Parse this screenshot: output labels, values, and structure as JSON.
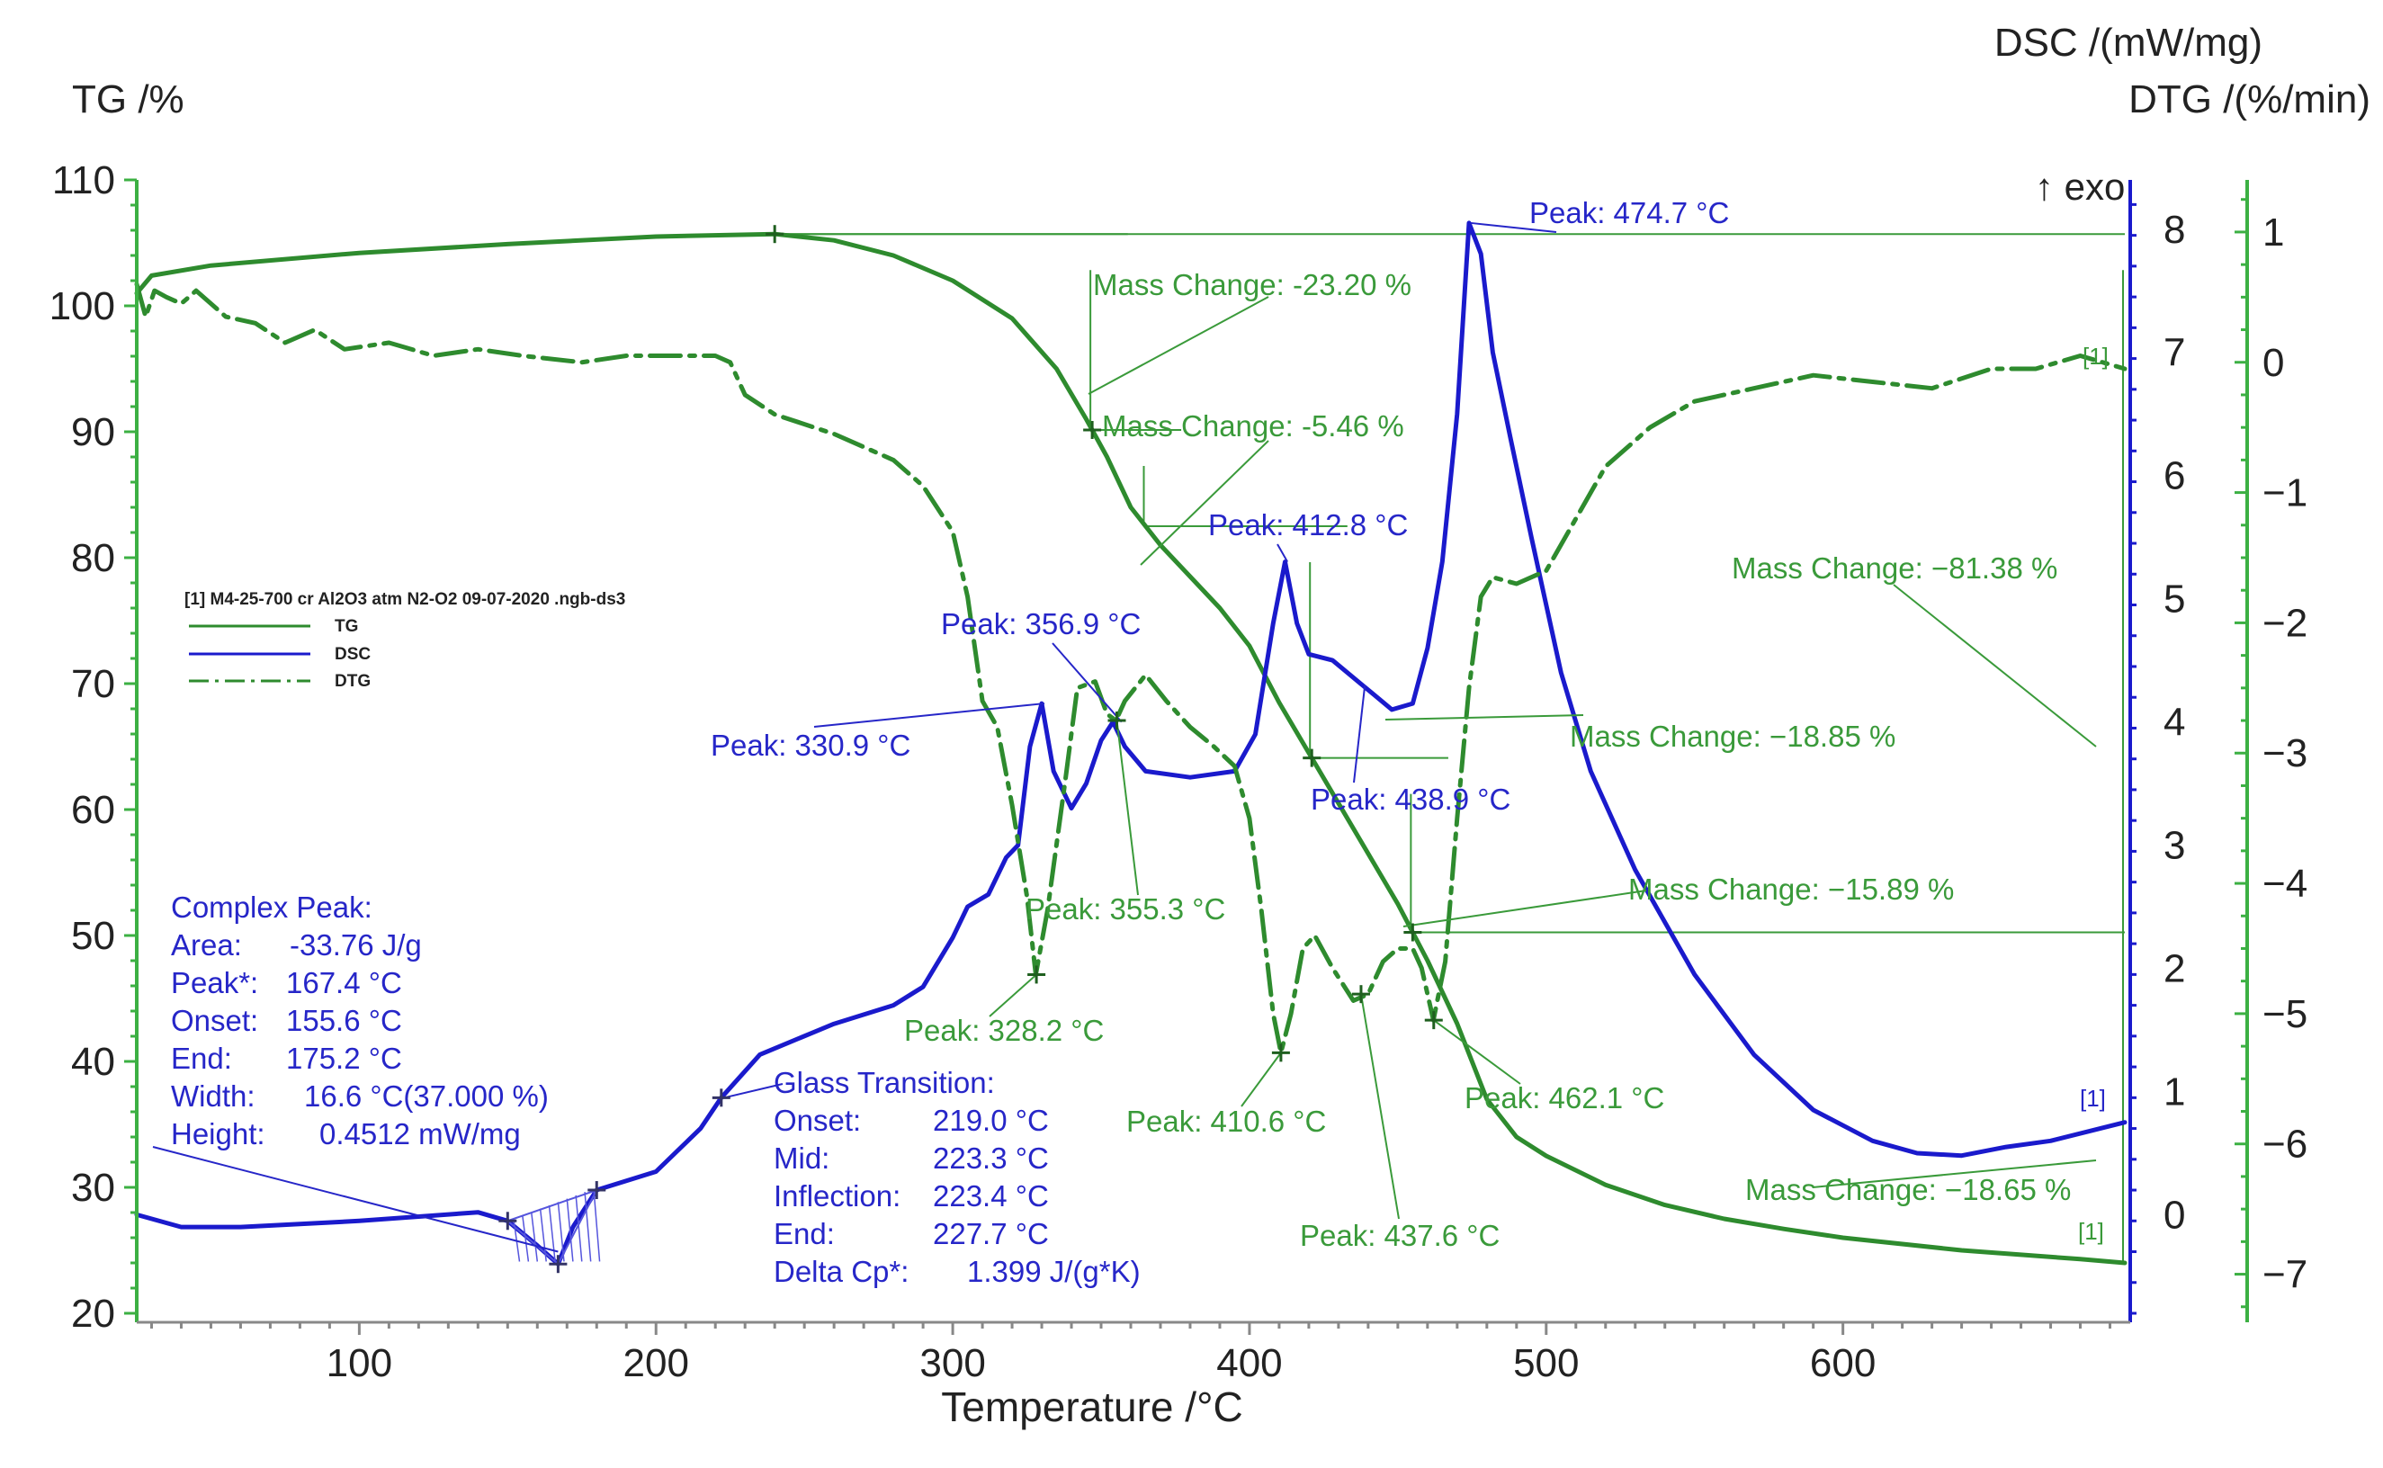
{
  "chart_data": {
    "type": "line",
    "title": "",
    "xlabel": "Temperature /°C",
    "xlim": [
      25,
      695
    ],
    "x_ticks": [
      100,
      200,
      300,
      400,
      500,
      600
    ],
    "axes": {
      "tg": {
        "label": "TG /%",
        "lim": [
          20,
          110
        ],
        "ticks": [
          20,
          30,
          40,
          50,
          60,
          70,
          80,
          90,
          100,
          110
        ]
      },
      "dsc": {
        "label": "DSC /(mW/mg)",
        "lim": [
          -0.8,
          8.4
        ],
        "ticks": [
          0,
          1,
          2,
          3,
          4,
          5,
          6,
          7,
          8
        ]
      },
      "dtg": {
        "label": "DTG /(%/min)",
        "lim": [
          -7.3,
          1.4
        ],
        "ticks": [
          1,
          0,
          -1,
          -2,
          -3,
          -4,
          -5,
          -6,
          -7
        ],
        "tick_labels": [
          "1",
          "0",
          "−1",
          "−2",
          "−3",
          "−4",
          "−5",
          "−6",
          "−7"
        ]
      }
    },
    "exo_label": "↑ exo",
    "legend": {
      "title": "[1] M4-25-700 cr Al2O3 atm N2-O2 09-07-2020 .ngb-ds3",
      "placement": "left-middle",
      "entries": [
        "TG",
        "DSC",
        "DTG"
      ]
    },
    "colors": {
      "tg": "#2e8b2e",
      "dsc": "#1a1acc",
      "dtg": "#2e8b2e",
      "annot_green": "#3a9a3a",
      "annot_blue": "#2626c8",
      "axis_green": "#3cb043"
    },
    "series": [
      {
        "name": "TG",
        "axis": "tg",
        "points": [
          [
            25,
            101
          ],
          [
            30,
            102.4
          ],
          [
            50,
            103.2
          ],
          [
            100,
            104.2
          ],
          [
            150,
            104.9
          ],
          [
            200,
            105.5
          ],
          [
            240,
            105.7
          ],
          [
            260,
            105.2
          ],
          [
            280,
            104
          ],
          [
            300,
            102
          ],
          [
            320,
            99
          ],
          [
            335,
            95
          ],
          [
            345,
            91
          ],
          [
            352,
            88
          ],
          [
            360,
            84
          ],
          [
            370,
            81
          ],
          [
            380,
            78.5
          ],
          [
            390,
            76
          ],
          [
            400,
            73
          ],
          [
            410,
            68.5
          ],
          [
            420,
            64.5
          ],
          [
            430,
            60.5
          ],
          [
            440,
            56.5
          ],
          [
            450,
            52.5
          ],
          [
            460,
            48
          ],
          [
            470,
            43
          ],
          [
            480,
            37
          ],
          [
            490,
            34
          ],
          [
            500,
            32.5
          ],
          [
            520,
            30.2
          ],
          [
            540,
            28.6
          ],
          [
            560,
            27.5
          ],
          [
            580,
            26.7
          ],
          [
            600,
            26
          ],
          [
            640,
            25
          ],
          [
            680,
            24.3
          ],
          [
            695,
            24
          ]
        ]
      },
      {
        "name": "DSC",
        "axis": "dsc",
        "points": [
          [
            25,
            0
          ],
          [
            40,
            -0.1
          ],
          [
            60,
            -0.1
          ],
          [
            100,
            -0.05
          ],
          [
            140,
            0.02
          ],
          [
            150,
            -0.05
          ],
          [
            160,
            -0.25
          ],
          [
            167,
            -0.4
          ],
          [
            172,
            -0.1
          ],
          [
            180,
            0.2
          ],
          [
            200,
            0.35
          ],
          [
            215,
            0.7
          ],
          [
            222,
            0.95
          ],
          [
            235,
            1.3
          ],
          [
            260,
            1.55
          ],
          [
            280,
            1.7
          ],
          [
            290,
            1.85
          ],
          [
            300,
            2.25
          ],
          [
            305,
            2.5
          ],
          [
            312,
            2.6
          ],
          [
            318,
            2.9
          ],
          [
            322,
            3
          ],
          [
            326,
            3.8
          ],
          [
            330,
            4.15
          ],
          [
            334,
            3.6
          ],
          [
            340,
            3.3
          ],
          [
            345,
            3.5
          ],
          [
            350,
            3.85
          ],
          [
            354,
            4
          ],
          [
            358,
            3.8
          ],
          [
            365,
            3.6
          ],
          [
            380,
            3.55
          ],
          [
            395,
            3.6
          ],
          [
            402,
            3.9
          ],
          [
            408,
            4.8
          ],
          [
            412,
            5.3
          ],
          [
            416,
            4.8
          ],
          [
            420,
            4.55
          ],
          [
            428,
            4.5
          ],
          [
            438,
            4.3
          ],
          [
            448,
            4.1
          ],
          [
            455,
            4.15
          ],
          [
            460,
            4.6
          ],
          [
            465,
            5.3
          ],
          [
            470,
            6.5
          ],
          [
            474,
            8.05
          ],
          [
            478,
            7.8
          ],
          [
            482,
            7
          ],
          [
            488,
            6.3
          ],
          [
            495,
            5.5
          ],
          [
            505,
            4.4
          ],
          [
            515,
            3.6
          ],
          [
            530,
            2.8
          ],
          [
            550,
            1.95
          ],
          [
            570,
            1.3
          ],
          [
            590,
            0.85
          ],
          [
            610,
            0.6
          ],
          [
            625,
            0.5
          ],
          [
            640,
            0.48
          ],
          [
            655,
            0.55
          ],
          [
            670,
            0.6
          ],
          [
            695,
            0.75
          ]
        ]
      },
      {
        "name": "DTG",
        "axis": "dtg",
        "points": [
          [
            25,
            0.6
          ],
          [
            28,
            0.35
          ],
          [
            31,
            0.55
          ],
          [
            35,
            0.5
          ],
          [
            40,
            0.45
          ],
          [
            45,
            0.55
          ],
          [
            55,
            0.35
          ],
          [
            65,
            0.3
          ],
          [
            75,
            0.15
          ],
          [
            85,
            0.25
          ],
          [
            95,
            0.1
          ],
          [
            110,
            0.15
          ],
          [
            125,
            0.05
          ],
          [
            140,
            0.1
          ],
          [
            155,
            0.05
          ],
          [
            175,
            0
          ],
          [
            190,
            0.05
          ],
          [
            210,
            0.05
          ],
          [
            220,
            0.05
          ],
          [
            225,
            0
          ],
          [
            230,
            -0.25
          ],
          [
            240,
            -0.4
          ],
          [
            260,
            -0.55
          ],
          [
            280,
            -0.75
          ],
          [
            290,
            -0.95
          ],
          [
            300,
            -1.3
          ],
          [
            305,
            -1.8
          ],
          [
            310,
            -2.6
          ],
          [
            315,
            -2.8
          ],
          [
            320,
            -3.4
          ],
          [
            325,
            -4.1
          ],
          [
            328,
            -4.7
          ],
          [
            332,
            -4.2
          ],
          [
            338,
            -3.2
          ],
          [
            342,
            -2.5
          ],
          [
            348,
            -2.45
          ],
          [
            352,
            -2.7
          ],
          [
            355,
            -2.75
          ],
          [
            358,
            -2.6
          ],
          [
            365,
            -2.4
          ],
          [
            372,
            -2.6
          ],
          [
            380,
            -2.8
          ],
          [
            388,
            -2.95
          ],
          [
            395,
            -3.1
          ],
          [
            400,
            -3.5
          ],
          [
            404,
            -4.2
          ],
          [
            408,
            -5
          ],
          [
            410.6,
            -5.3
          ],
          [
            414,
            -5
          ],
          [
            418,
            -4.5
          ],
          [
            422,
            -4.4
          ],
          [
            428,
            -4.65
          ],
          [
            435,
            -4.9
          ],
          [
            440,
            -4.85
          ],
          [
            445,
            -4.6
          ],
          [
            450,
            -4.5
          ],
          [
            455,
            -4.5
          ],
          [
            458,
            -4.65
          ],
          [
            462,
            -5.05
          ],
          [
            466,
            -4.6
          ],
          [
            470,
            -3.5
          ],
          [
            474,
            -2.5
          ],
          [
            478,
            -1.8
          ],
          [
            482,
            -1.65
          ],
          [
            490,
            -1.7
          ],
          [
            500,
            -1.6
          ],
          [
            510,
            -1.2
          ],
          [
            520,
            -0.8
          ],
          [
            535,
            -0.5
          ],
          [
            550,
            -0.3
          ],
          [
            570,
            -0.2
          ],
          [
            590,
            -0.1
          ],
          [
            610,
            -0.15
          ],
          [
            630,
            -0.2
          ],
          [
            650,
            -0.05
          ],
          [
            665,
            -0.05
          ],
          [
            680,
            0.05
          ],
          [
            695,
            -0.05
          ]
        ]
      }
    ],
    "annotations": {
      "peaks_green": [
        {
          "x": 328.2,
          "label": "Peak: 328.2 °C"
        },
        {
          "x": 355.3,
          "label": "Peak: 355.3 °C"
        },
        {
          "x": 410.6,
          "label": "Peak: 410.6 °C"
        },
        {
          "x": 437.6,
          "label": "Peak: 437.6 °C"
        },
        {
          "x": 462.1,
          "label": "Peak: 462.1 °C"
        }
      ],
      "peaks_blue": [
        {
          "x": 330.9,
          "label": "Peak: 330.9 °C"
        },
        {
          "x": 356.9,
          "label": "Peak: 356.9 °C"
        },
        {
          "x": 412.8,
          "label": "Peak: 412.8 °C"
        },
        {
          "x": 438.9,
          "label": "Peak: 438.9 °C"
        },
        {
          "x": 474.7,
          "label": "Peak: 474.7 °C"
        }
      ],
      "mass_changes": [
        "Mass Change: -23.20 %",
        "Mass Change: -5.46 %",
        "Mass Change: −18.85 %",
        "Mass Change: −15.89 %",
        "Mass Change: −81.38 %",
        "Mass Change: −18.65 %"
      ],
      "complex_peak": {
        "title": "Complex Peak:",
        "rows": [
          [
            "Area:",
            "-33.76 J/g"
          ],
          [
            "Peak*:",
            "167.4 °C"
          ],
          [
            "Onset:",
            "155.6 °C"
          ],
          [
            "End:",
            "175.2 °C"
          ],
          [
            "Width:",
            "16.6 °C(37.000 %)"
          ],
          [
            "Height:",
            "0.4512 mW/mg"
          ]
        ]
      },
      "glass_transition": {
        "title": "Glass Transition:",
        "rows": [
          [
            "Onset:",
            "219.0 °C"
          ],
          [
            "Mid:",
            "223.3 °C"
          ],
          [
            "Inflection:",
            "223.4 °C"
          ],
          [
            "End:",
            "227.7 °C"
          ],
          [
            "Delta Cp*:",
            "1.399 J/(g*K)"
          ]
        ]
      },
      "curve_tags": [
        "[1]",
        "[1]",
        "[1]"
      ]
    }
  }
}
